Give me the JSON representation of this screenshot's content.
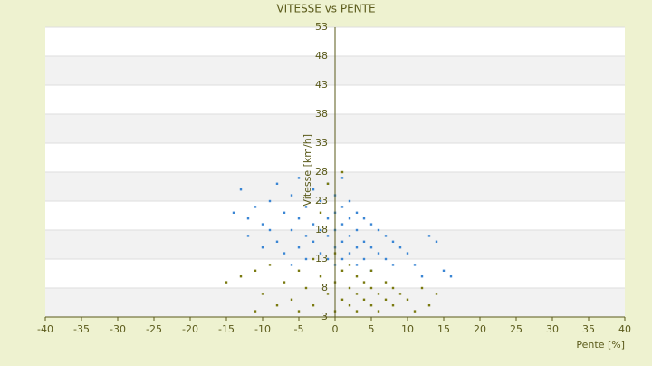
{
  "chart_data": {
    "type": "scatter",
    "title": "VITESSE vs PENTE",
    "x_label": "Pente [%]",
    "y_label": "Vitesse [km/h]",
    "xlim": [
      -40,
      40
    ],
    "xticks": [
      -40,
      -35,
      -30,
      -25,
      -20,
      -15,
      -10,
      -5,
      0,
      5,
      10,
      15,
      20,
      25,
      30,
      35,
      40
    ],
    "ylim": [
      3,
      53
    ],
    "yticks": [
      3,
      8,
      13,
      18,
      23,
      28,
      33,
      38,
      43,
      48,
      53
    ],
    "grid": true,
    "series": [
      {
        "color": "#3a86d4",
        "x": [
          -14,
          -13,
          -12,
          -12,
          -11,
          -10,
          -10,
          -9,
          -9,
          -8,
          -8,
          -7,
          -7,
          -6,
          -6,
          -6,
          -5,
          -5,
          -5,
          -4,
          -4,
          -4,
          -3,
          -3,
          -3,
          -2,
          -2,
          -2,
          -1,
          -1,
          -1,
          -1,
          0,
          0,
          0,
          0,
          0,
          1,
          1,
          1,
          1,
          1,
          2,
          2,
          2,
          2,
          3,
          3,
          3,
          3,
          4,
          4,
          4,
          5,
          5,
          5,
          6,
          6,
          7,
          7,
          8,
          8,
          9,
          10,
          11,
          12,
          13,
          14,
          15,
          16
        ],
        "values": [
          21,
          25,
          20,
          17,
          22,
          19,
          15,
          23,
          18,
          26,
          16,
          21,
          14,
          24,
          18,
          12,
          27,
          20,
          15,
          22,
          17,
          13,
          25,
          19,
          16,
          23,
          18,
          14,
          26,
          20,
          17,
          13,
          24,
          21,
          18,
          15,
          12,
          27,
          22,
          19,
          16,
          13,
          23,
          20,
          17,
          14,
          21,
          18,
          15,
          12,
          20,
          16,
          13,
          19,
          15,
          11,
          18,
          14,
          17,
          13,
          16,
          12,
          15,
          14,
          12,
          10,
          17,
          16,
          11,
          10
        ]
      },
      {
        "color": "#7a7a10",
        "x": [
          -15,
          -13,
          -11,
          -11,
          -10,
          -9,
          -8,
          -7,
          -6,
          -5,
          -5,
          -4,
          -3,
          -3,
          -2,
          -2,
          -1,
          -1,
          0,
          0,
          0,
          1,
          1,
          1,
          2,
          2,
          2,
          3,
          3,
          3,
          4,
          4,
          5,
          5,
          5,
          6,
          6,
          7,
          7,
          8,
          8,
          9,
          10,
          11,
          12,
          13,
          14
        ],
        "values": [
          9,
          10,
          11,
          4,
          7,
          12,
          5,
          9,
          6,
          11,
          4,
          8,
          13,
          5,
          10,
          21,
          7,
          26,
          4,
          9,
          14,
          6,
          11,
          28,
          5,
          8,
          12,
          4,
          7,
          10,
          6,
          9,
          5,
          8,
          11,
          4,
          7,
          6,
          9,
          5,
          8,
          7,
          6,
          4,
          8,
          5,
          7
        ]
      }
    ]
  }
}
